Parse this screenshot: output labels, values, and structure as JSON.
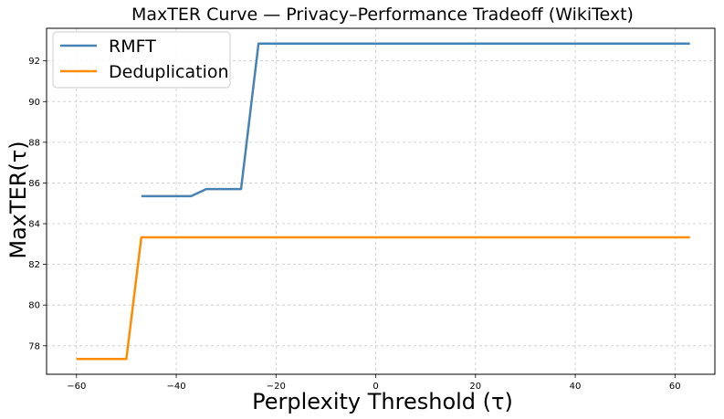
{
  "chart_data": {
    "type": "line",
    "title": "MaxTER Curve — Privacy–Performance Tradeoff (WikiText)",
    "xlabel": "Perplexity Threshold (τ)",
    "ylabel": "MaxTER(τ)",
    "xlim": [
      -66,
      68
    ],
    "ylim": [
      76.6,
      93.6
    ],
    "xticks": [
      -60,
      -40,
      -20,
      0,
      20,
      40,
      60
    ],
    "yticks": [
      78,
      80,
      82,
      84,
      86,
      88,
      90,
      92
    ],
    "grid": true,
    "legend": "top-left",
    "series": [
      {
        "name": "RMFT",
        "color": "#4682b4",
        "x": [
          -47,
          -37,
          -34,
          -27,
          -23.5,
          63
        ],
        "y": [
          85.35,
          85.35,
          85.7,
          85.7,
          92.85,
          92.85
        ]
      },
      {
        "name": "Deduplication",
        "color": "#ff8c00",
        "x": [
          -60,
          -50,
          -47,
          63
        ],
        "y": [
          77.35,
          77.35,
          83.33,
          83.33
        ]
      }
    ]
  }
}
